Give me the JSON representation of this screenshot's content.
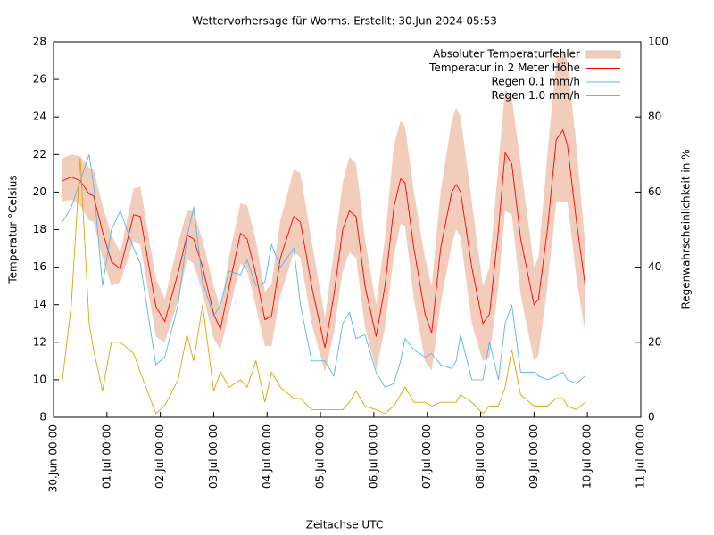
{
  "chart_data": {
    "type": "line",
    "title": "Wettervorhersage für Worms. Erstellt: 30.Jun 2024 05:53",
    "xlabel": "Zeitachse UTC",
    "ylabel": "Temperatur °Celsius",
    "y2label": "Regenwahrscheinlichkeit in %",
    "legend": "upper right",
    "xlim": [
      0,
      264
    ],
    "xticks": [
      {
        "value": 0,
        "label": "30.Jun 00:00"
      },
      {
        "value": 24,
        "label": "01.Jul 00:00"
      },
      {
        "value": 48,
        "label": "02.Jul 00:00"
      },
      {
        "value": 72,
        "label": "03.Jul 00:00"
      },
      {
        "value": 96,
        "label": "04.Jul 00:00"
      },
      {
        "value": 120,
        "label": "05.Jul 00:00"
      },
      {
        "value": 144,
        "label": "06.Jul 00:00"
      },
      {
        "value": 168,
        "label": "07.Jul 00:00"
      },
      {
        "value": 192,
        "label": "08.Jul 00:00"
      },
      {
        "value": 216,
        "label": "09.Jul 00:00"
      },
      {
        "value": 240,
        "label": "10.Jul 00:00"
      },
      {
        "value": 264,
        "label": "11.Jul 00:00"
      }
    ],
    "ylim": [
      8,
      28
    ],
    "yticks": [
      8,
      10,
      12,
      14,
      16,
      18,
      20,
      22,
      24,
      26,
      28
    ],
    "y2lim": [
      0,
      100
    ],
    "y2ticks": [
      0,
      20,
      40,
      60,
      80,
      100
    ],
    "x": [
      4,
      8,
      12,
      16,
      18,
      22,
      26,
      30,
      36,
      39,
      46,
      50,
      56,
      60,
      63,
      67,
      72,
      75,
      79,
      84,
      87,
      91,
      95,
      98,
      102,
      108,
      111,
      116,
      122,
      126,
      130,
      133,
      136,
      140,
      145,
      149,
      153,
      156,
      158,
      162,
      167,
      170,
      174,
      179,
      181,
      183,
      188,
      193,
      196,
      200,
      203,
      206,
      210,
      216,
      218,
      222,
      226,
      229,
      231,
      235,
      239
    ],
    "band": {
      "name": "Absoluter Temperaturfehler",
      "color": "#f2cdbc",
      "lower": [
        19.5,
        19.6,
        19.3,
        18.5,
        18.4,
        16.5,
        15.0,
        15.2,
        17.4,
        17.2,
        12.3,
        12.0,
        14.2,
        16.4,
        16.2,
        14.6,
        12.2,
        11.6,
        13.6,
        16.2,
        15.8,
        13.9,
        11.8,
        11.8,
        14.5,
        16.8,
        16.5,
        13.0,
        10.4,
        12.5,
        15.8,
        16.8,
        16.5,
        12.8,
        10.5,
        12.8,
        16.6,
        18.3,
        18.2,
        14.3,
        11.0,
        10.5,
        14.0,
        17.2,
        18.0,
        17.6,
        13.0,
        11.0,
        11.2,
        15.0,
        19.0,
        18.8,
        14.5,
        11.0,
        11.3,
        15.0,
        19.5,
        19.5,
        19.5,
        15.5,
        12.5
      ],
      "upper": [
        21.8,
        22.0,
        21.9,
        21.3,
        21.2,
        19.3,
        17.7,
        16.8,
        20.2,
        20.3,
        15.4,
        14.3,
        17.3,
        19.0,
        19.0,
        17.4,
        15.0,
        13.8,
        16.6,
        19.4,
        19.3,
        17.4,
        14.7,
        15.1,
        18.5,
        21.2,
        21.0,
        17.4,
        13.3,
        16.8,
        20.5,
        21.9,
        21.5,
        17.5,
        14.0,
        17.5,
        22.5,
        23.8,
        23.5,
        20.0,
        16.5,
        15.0,
        20.0,
        23.8,
        24.5,
        24.0,
        19.5,
        15.0,
        16.0,
        21.5,
        25.5,
        25.0,
        21.5,
        16.0,
        16.5,
        22.0,
        27.0,
        27.5,
        27.0,
        22.5,
        17.2
      ]
    },
    "series": [
      {
        "name": "Temperatur in 2 Meter Höhe",
        "color": "#ff0000",
        "values": [
          20.6,
          20.8,
          20.6,
          19.9,
          19.8,
          17.9,
          16.3,
          15.9,
          18.8,
          18.7,
          13.9,
          13.1,
          15.7,
          17.7,
          17.5,
          16.0,
          13.5,
          12.7,
          15.0,
          17.8,
          17.5,
          15.6,
          13.2,
          13.4,
          16.5,
          18.7,
          18.4,
          15.0,
          11.7,
          14.5,
          18.0,
          19.0,
          18.7,
          15.0,
          12.3,
          15.0,
          19.2,
          20.7,
          20.5,
          17.0,
          13.5,
          12.5,
          17.0,
          20.0,
          20.4,
          20.0,
          16.0,
          13.0,
          13.5,
          18.0,
          22.1,
          21.5,
          17.5,
          14.0,
          14.3,
          18.0,
          22.8,
          23.3,
          22.5,
          18.5,
          15.0
        ]
      },
      {
        "name": "Regen 0.1 mm/h",
        "color": "#56b4e9",
        "axis": "y2",
        "values": [
          52,
          56,
          63,
          70,
          62,
          35,
          50,
          55,
          45,
          41,
          14,
          16,
          30,
          48,
          56,
          36,
          27,
          30,
          39,
          38,
          42,
          35,
          36,
          46,
          40,
          45,
          30,
          15,
          15,
          11,
          25,
          28,
          21,
          22,
          12,
          8,
          9,
          15,
          21,
          18,
          16,
          17,
          14,
          13,
          15,
          22,
          10,
          10,
          20,
          10,
          25,
          30,
          12,
          12,
          11,
          10,
          11,
          12,
          10,
          9,
          11
        ]
      },
      {
        "name": "Regen 1.0 mm/h",
        "color": "#e69f00",
        "axis": "y2",
        "values": [
          10,
          30,
          69,
          25,
          18,
          7,
          20,
          20,
          17,
          12,
          1,
          3,
          10,
          22,
          15,
          30,
          7,
          12,
          8,
          10,
          8,
          15,
          4,
          12,
          8,
          5,
          5,
          2,
          2,
          2,
          2,
          4,
          7,
          3,
          2,
          1,
          3,
          6,
          8,
          4,
          4,
          3,
          4,
          4,
          4,
          6,
          4,
          1,
          3,
          3,
          8,
          18,
          6,
          3,
          3,
          3,
          5,
          5,
          3,
          2,
          4
        ]
      }
    ]
  }
}
